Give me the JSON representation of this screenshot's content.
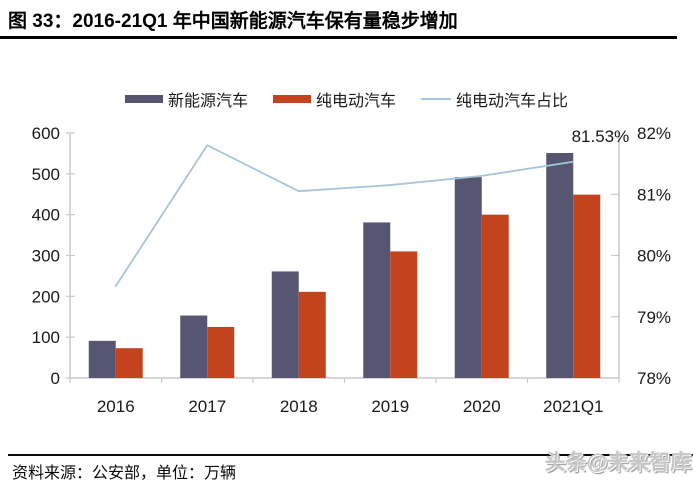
{
  "figure": {
    "title": "图 33：2016-21Q1 年中国新能源汽车保有量稳步增加",
    "source_note": "资料来源：公安部，单位：万辆",
    "watermark": "头条@未来智库"
  },
  "colors": {
    "bar_nev": "#575672",
    "bar_bev": "#c4431f",
    "line_share": "#a6c5d8",
    "axis": "#c9c9c9",
    "text": "#1a1a1a",
    "title_rule": "#000000",
    "watermark": "#c7c7c7"
  },
  "chart_data": {
    "type": "bar",
    "title": "2016-21Q1 年中国新能源汽车保有量稳步增加",
    "categories": [
      "2016",
      "2017",
      "2018",
      "2019",
      "2020",
      "2021Q1"
    ],
    "series": [
      {
        "name": "新能源汽车",
        "type": "bar",
        "axis": "left",
        "color": "#575672",
        "values": [
          91,
          153,
          261,
          381,
          492,
          551
        ]
      },
      {
        "name": "纯电动汽车",
        "type": "bar",
        "axis": "left",
        "color": "#c4431f",
        "values": [
          73,
          125,
          211,
          310,
          400,
          449
        ]
      },
      {
        "name": "纯电动汽车占比",
        "type": "line",
        "axis": "right",
        "color": "#a6c5d8",
        "values": [
          79.5,
          81.8,
          81.05,
          81.15,
          81.3,
          81.53
        ]
      }
    ],
    "left_axis": {
      "min": 0,
      "max": 600,
      "step": 100,
      "suffix": ""
    },
    "right_axis": {
      "min": 78,
      "max": 82,
      "step": 1,
      "suffix": "%"
    },
    "annotation": {
      "text": "81.53%",
      "category_index": 5
    },
    "legend_position": "top",
    "grid": false,
    "unit": "万辆",
    "xlabel": "",
    "ylabel": ""
  }
}
